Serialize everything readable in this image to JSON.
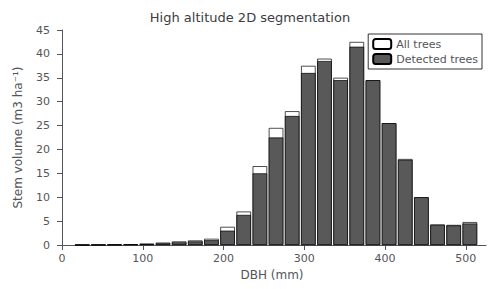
{
  "chart_data": {
    "type": "bar",
    "title": "High altitude 2D segmentation",
    "xlabel": "DBH (mm)",
    "ylabel": "Stem volume (m3 ha⁻¹)",
    "x": [
      25,
      45,
      65,
      85,
      105,
      125,
      145,
      165,
      185,
      205,
      225,
      245,
      265,
      285,
      305,
      325,
      345,
      365,
      385,
      405,
      425,
      445,
      465,
      485,
      505
    ],
    "series": [
      {
        "name": "All trees",
        "color": "#ffffff",
        "values": [
          0.05,
          0.08,
          0.12,
          0.18,
          0.3,
          0.5,
          0.75,
          0.95,
          1.3,
          3.8,
          7.0,
          16.5,
          24.5,
          28.0,
          37.5,
          39.0,
          35.0,
          42.5,
          34.5,
          25.5,
          18.0,
          10.0,
          4.3,
          4.2,
          4.8
        ]
      },
      {
        "name": "Detected trees",
        "color": "#595959",
        "values": [
          0.0,
          0.0,
          0.05,
          0.1,
          0.2,
          0.35,
          0.55,
          0.75,
          1.0,
          3.0,
          6.3,
          15.0,
          22.5,
          27.0,
          36.0,
          38.5,
          34.5,
          41.5,
          34.5,
          25.5,
          17.8,
          10.0,
          4.2,
          4.1,
          4.5
        ]
      }
    ],
    "xlim": [
      -5,
      525
    ],
    "xticks": [
      0,
      100,
      200,
      300,
      400,
      500
    ],
    "ylim": [
      0,
      45
    ],
    "yticks": [
      0,
      5,
      10,
      15,
      20,
      25,
      30,
      35,
      40,
      45
    ],
    "grid": false,
    "legend": "upper right"
  }
}
